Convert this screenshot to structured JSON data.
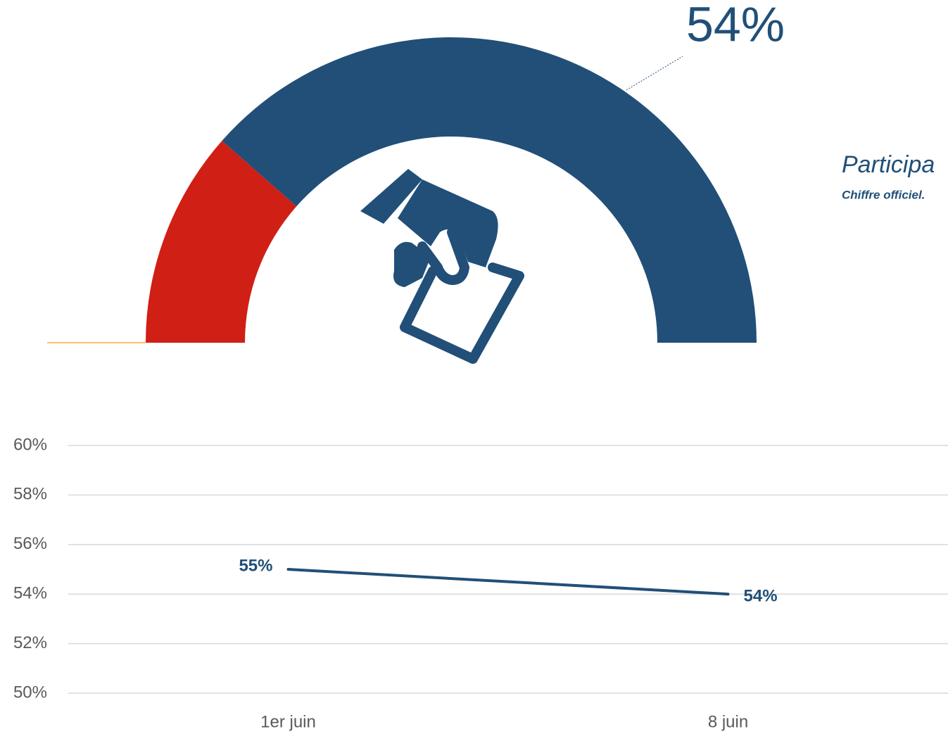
{
  "chart_data": [
    {
      "type": "donut",
      "half": true,
      "values": [
        23,
        77
      ],
      "colors": [
        "#d01f15",
        "#214f78"
      ],
      "annotation": "54%",
      "title": "Participa",
      "subtitle": "Chiffre officiel."
    },
    {
      "type": "line",
      "categories": [
        "1er juin",
        "8 juin"
      ],
      "values": [
        55,
        54
      ],
      "value_labels": [
        "55%",
        "54%"
      ],
      "color": "#214f78",
      "ylim": [
        50,
        60
      ],
      "yticks": [
        {
          "value": 50,
          "label": "50%"
        },
        {
          "value": 52,
          "label": "52%"
        },
        {
          "value": 54,
          "label": "54%"
        },
        {
          "value": 56,
          "label": "56%"
        },
        {
          "value": 58,
          "label": "58%"
        },
        {
          "value": 60,
          "label": "60%"
        }
      ],
      "grid": true
    }
  ]
}
